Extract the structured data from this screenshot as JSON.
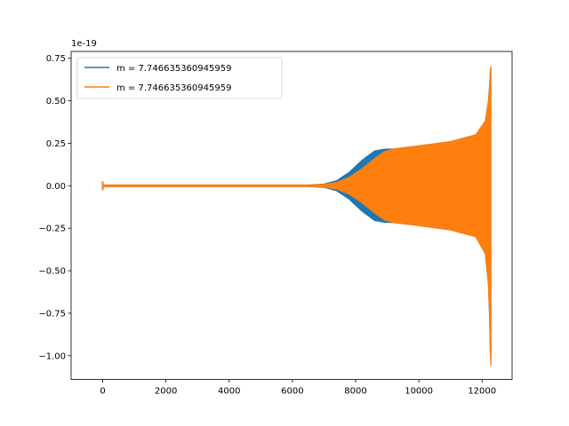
{
  "chart_data": {
    "type": "line",
    "title": "",
    "xlabel": "",
    "ylabel": "",
    "y_offset_label": "1e-19",
    "xlim": [
      -1000,
      12950
    ],
    "ylim": [
      -1.14,
      0.79
    ],
    "xticks": [
      0,
      2000,
      4000,
      6000,
      8000,
      10000,
      12000
    ],
    "xtick_labels": [
      "0",
      "2000",
      "4000",
      "6000",
      "8000",
      "10000",
      "12000"
    ],
    "yticks": [
      -1.0,
      -0.75,
      -0.5,
      -0.25,
      0.0,
      0.25,
      0.5,
      0.75
    ],
    "ytick_labels": [
      "−1.00",
      "−0.75",
      "−0.50",
      "−0.25",
      "0.00",
      "0.25",
      "0.50",
      "0.75"
    ],
    "grid": false,
    "legend_position": "top-left",
    "series": [
      {
        "name": "m = 7.746635360945959",
        "color": "#1f77b4",
        "envelope_x": [
          0,
          6500,
          7000,
          7400,
          7800,
          8200,
          8600,
          8900,
          9200,
          10000,
          11000,
          11800,
          12100,
          12200,
          12240,
          12260,
          12280
        ],
        "envelope_upper": [
          0.005,
          0.005,
          0.01,
          0.03,
          0.08,
          0.15,
          0.205,
          0.215,
          0.217,
          0.235,
          0.26,
          0.3,
          0.38,
          0.5,
          0.6,
          0.68,
          0.7
        ],
        "envelope_lower": [
          -0.005,
          -0.005,
          -0.01,
          -0.03,
          -0.08,
          -0.15,
          -0.205,
          -0.215,
          -0.217,
          -0.235,
          -0.26,
          -0.3,
          -0.4,
          -0.58,
          -0.8,
          -1.0,
          -1.05
        ]
      },
      {
        "name": "m = 7.746635360945959",
        "color": "#ff7f0e",
        "envelope_x": [
          0,
          6500,
          7000,
          7400,
          7800,
          8200,
          8600,
          8900,
          9200,
          10000,
          11000,
          11800,
          12100,
          12200,
          12240,
          12260,
          12280
        ],
        "envelope_upper": [
          0.005,
          0.005,
          0.008,
          0.02,
          0.05,
          0.1,
          0.16,
          0.2,
          0.217,
          0.235,
          0.26,
          0.3,
          0.38,
          0.5,
          0.6,
          0.68,
          0.7
        ],
        "envelope_lower": [
          -0.005,
          -0.005,
          -0.008,
          -0.02,
          -0.05,
          -0.1,
          -0.16,
          -0.2,
          -0.217,
          -0.235,
          -0.26,
          -0.3,
          -0.4,
          -0.58,
          -0.8,
          -1.0,
          -1.06
        ]
      }
    ]
  }
}
